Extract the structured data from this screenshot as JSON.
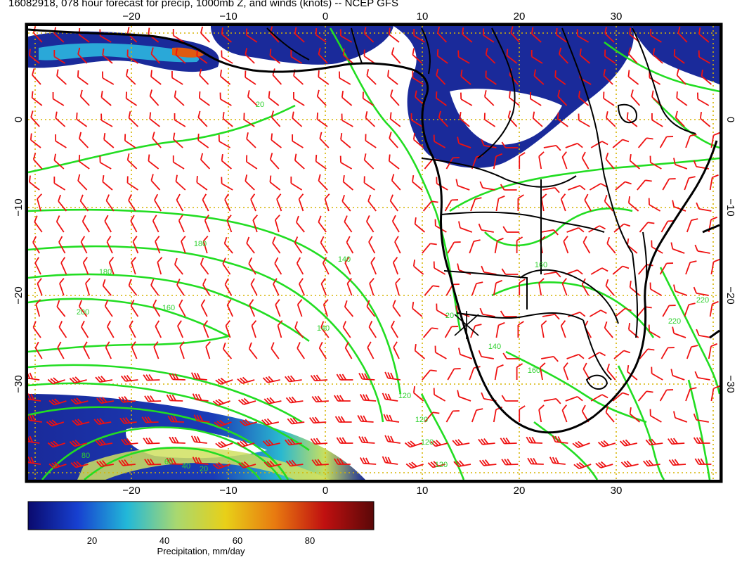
{
  "title": "16082918, 078 hour forecast for precip, 1000mb Z, and winds (knots) -- NCEP GFS",
  "map": {
    "lon_ticks": [
      "−20",
      "−10",
      "0",
      "10",
      "20",
      "30"
    ],
    "lat_ticks": [
      "0",
      "−10",
      "−20",
      "−30"
    ],
    "contour_labels": [
      "20",
      "180",
      "180",
      "200",
      "160",
      "140",
      "140",
      "120",
      "120",
      "120",
      "160",
      "140",
      "160",
      "220",
      "220",
      "120",
      "20",
      "80",
      "60",
      "40",
      "20"
    ],
    "marker": "x-marker-icon",
    "colors": {
      "contour": "#22dd22",
      "barb": "#ee1111",
      "coast": "#000000",
      "grid": "#d6b400",
      "precip_low": "#1a2a9a"
    }
  },
  "colorbar": {
    "ticks": [
      "20",
      "40",
      "60",
      "80"
    ],
    "label": "Precipitation, mm/day",
    "stops": [
      "#0a0a6e",
      "#1740d0",
      "#22b8d8",
      "#a8d870",
      "#e8d018",
      "#e87a10",
      "#c01010",
      "#5a0808"
    ]
  }
}
